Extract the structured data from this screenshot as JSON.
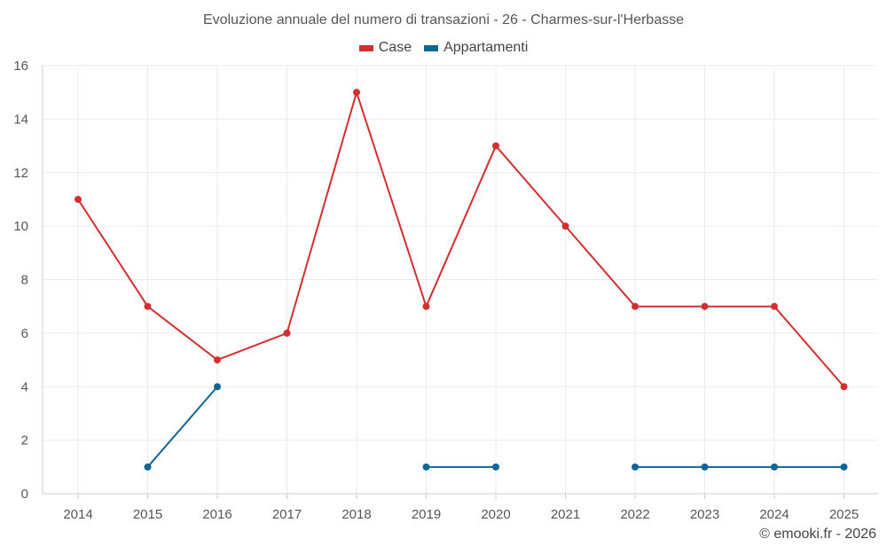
{
  "chart_data": {
    "type": "line",
    "title": "Evoluzione annuale del numero di transazioni - 26 - Charmes-sur-l'Herbasse",
    "categories": [
      "2014",
      "2015",
      "2016",
      "2017",
      "2018",
      "2019",
      "2020",
      "2021",
      "2022",
      "2023",
      "2024",
      "2025"
    ],
    "series": [
      {
        "name": "Case",
        "color": "#d32f2f",
        "values": [
          11,
          7,
          5,
          6,
          15,
          7,
          13,
          10,
          7,
          7,
          7,
          4
        ]
      },
      {
        "name": "Appartamenti",
        "color": "#0d6599",
        "values": [
          null,
          1,
          4,
          null,
          null,
          1,
          1,
          null,
          1,
          1,
          1,
          1
        ]
      }
    ],
    "ylim": [
      0,
      16
    ],
    "yticks": [
      0,
      2,
      4,
      6,
      8,
      10,
      12,
      14,
      16
    ],
    "xlabel": "",
    "ylabel": "",
    "grid": true,
    "legend": "top-center"
  },
  "credit": "© emooki.fr - 2026"
}
